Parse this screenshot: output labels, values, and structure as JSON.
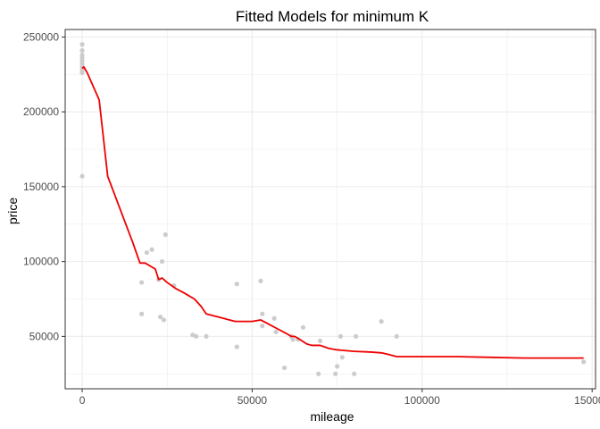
{
  "chart_data": {
    "type": "scatter",
    "title": "Fitted Models for minimum K",
    "xlabel": "mileage",
    "ylabel": "price",
    "xlim": [
      -5000,
      151000
    ],
    "ylim": [
      15000,
      255000
    ],
    "x_ticks": [
      0,
      50000,
      100000,
      150000
    ],
    "x_tick_labels": [
      "0",
      "50000",
      "100000",
      "150000"
    ],
    "y_ticks": [
      50000,
      100000,
      150000,
      200000,
      250000
    ],
    "y_tick_labels": [
      "50000",
      "100000",
      "150000",
      "200000",
      "250000"
    ],
    "grid": true,
    "legend": "none",
    "colors": {
      "points": "#cccccc",
      "fit_line": "#ee0000",
      "grid": "#ebebeb",
      "panel_border": "#333333"
    },
    "series": [
      {
        "kind": "points",
        "x": [
          0,
          0,
          0,
          0,
          0,
          0,
          0,
          0,
          0,
          0,
          17500,
          17500,
          19000,
          20500,
          22500,
          23000,
          23500,
          24000,
          24500,
          27000,
          32500,
          33500,
          36500,
          45500,
          45500,
          52500,
          53000,
          53000,
          56500,
          57000,
          59500,
          61500,
          62000,
          63500,
          65000,
          69500,
          70000,
          74500,
          75000,
          76000,
          76500,
          80000,
          80500,
          88000,
          92500,
          147500
        ],
        "y": [
          245000,
          241000,
          238000,
          236000,
          234000,
          232000,
          230000,
          228000,
          226000,
          157000,
          86000,
          65000,
          106000,
          108000,
          88000,
          63000,
          100000,
          61000,
          118000,
          84000,
          51000,
          50000,
          50000,
          43000,
          85000,
          87000,
          65000,
          57000,
          62000,
          53000,
          29000,
          50000,
          48000,
          48000,
          56000,
          25000,
          47000,
          25000,
          30000,
          50000,
          36000,
          25000,
          50000,
          60000,
          50000,
          33000
        ]
      },
      {
        "kind": "line",
        "x": [
          0,
          500,
          1500,
          5000,
          7500,
          10000,
          12500,
          15000,
          17000,
          18500,
          20000,
          21500,
          22500,
          23500,
          25000,
          27500,
          30000,
          33000,
          35000,
          36500,
          40000,
          45000,
          47500,
          50000,
          52500,
          55000,
          57500,
          60000,
          61500,
          62500,
          64000,
          66000,
          67500,
          70000,
          72500,
          75000,
          80000,
          85000,
          88000,
          90000,
          92500,
          100000,
          110000,
          120000,
          130000,
          140000,
          147500
        ],
        "y": [
          229000,
          230000,
          226000,
          208000,
          157000,
          142000,
          127000,
          112000,
          99000,
          99000,
          97000,
          95000,
          88000,
          89000,
          86000,
          82000,
          79000,
          75000,
          70000,
          65000,
          63000,
          60000,
          60000,
          60000,
          61000,
          58000,
          55000,
          52000,
          50000,
          50000,
          48000,
          45000,
          44000,
          44000,
          42000,
          41000,
          40000,
          39500,
          39000,
          38000,
          36500,
          36500,
          36500,
          36000,
          35500,
          35500,
          35500
        ]
      }
    ]
  }
}
